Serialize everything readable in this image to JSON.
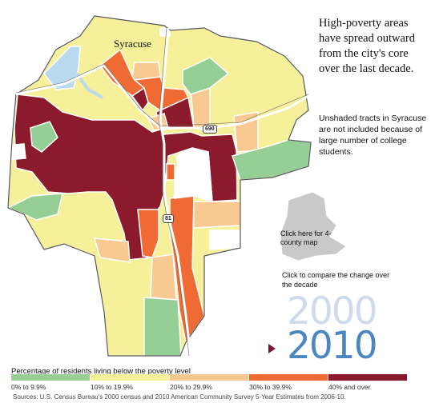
{
  "headline": "High-poverty areas have spread outward from the city's core over the last decade.",
  "note": "Unshaded tracts in Syracuse are not included because of large number of college students.",
  "map": {
    "city_label": "Syracuse",
    "highways": [
      "690",
      "81"
    ],
    "county_map_link": "Click here for 4-county map"
  },
  "compare": {
    "prompt": "Click to compare the change over the decade",
    "year_a": "2000",
    "year_b": "2010",
    "selected": "2010"
  },
  "legend": {
    "title": "Percentage of residents living below the poverty level",
    "items": [
      {
        "label": "0% to 9.9%",
        "color": "#96cf96"
      },
      {
        "label": "10% to 19.9%",
        "color": "#f7f09a"
      },
      {
        "label": "20% to 29.9%",
        "color": "#f8c990"
      },
      {
        "label": "30% to 39.9%",
        "color": "#ef6b33"
      },
      {
        "label": "40% and over",
        "color": "#8a1a2c"
      }
    ]
  },
  "sources": "Sources: U.S. Census Bureau's 2000 census and 2010 American Community Survey 5-Year Estimates from 2006-10."
}
